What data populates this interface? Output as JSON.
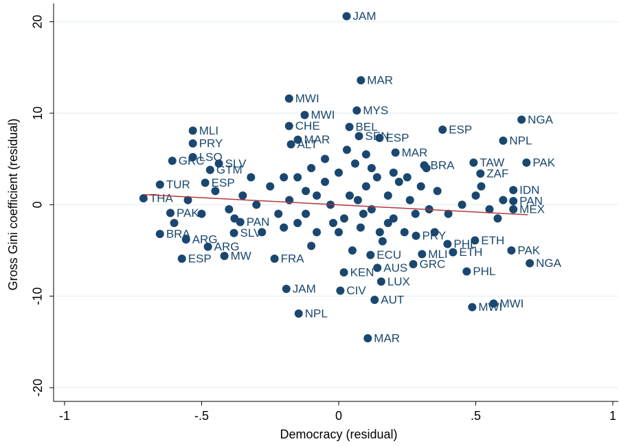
{
  "chart_data": {
    "type": "scatter",
    "x_label": "Democracy (residual)",
    "y_label": "Gross Gini coefficient (residual)",
    "color": "#1a476f",
    "xlim": [
      -1.04,
      1.02
    ],
    "ylim": [
      -21.5,
      22
    ],
    "xticks": [
      -1,
      {
        "value": -0.5,
        "label": "-.5"
      },
      0,
      {
        "value": 0.5,
        "label": ".5"
      },
      1
    ],
    "yticks": [
      -20,
      -10,
      0,
      10,
      20
    ],
    "grid": true,
    "fit_line": {
      "x": [
        -0.71,
        0.69
      ],
      "y": [
        1.1,
        -1.1
      ],
      "color": "#b2373b"
    },
    "x": [
      0.029,
      0.081,
      -0.181,
      -0.124,
      0.066,
      0.667,
      -0.532,
      -0.181,
      0.039,
      0.379,
      -0.532,
      0.6,
      -0.532,
      -0.607,
      0.492,
      0.685,
      -0.652,
      -0.712,
      0.517,
      0.637,
      0.637,
      0.637,
      -0.614,
      -0.652,
      -0.557,
      -0.477,
      -0.572,
      -0.417,
      -0.234,
      0.272,
      0.697,
      0.63,
      0.467,
      0.397,
      0.141,
      0.019,
      0.155,
      0.006,
      -0.191,
      0.131,
      0.487,
      0.565,
      -0.146,
      0.106,
      0.497,
      0.304,
      0.417,
      0.116,
      0.282,
      -0.437,
      -0.469,
      -0.487,
      -0.382,
      -0.359,
      0.074,
      0.149,
      0.207,
      0.312,
      -0.174,
      -0.149,
      -0.25,
      -0.22,
      -0.2,
      -0.18,
      -0.15,
      -0.12,
      -0.1,
      -0.08,
      -0.05,
      -0.03,
      0,
      0.02,
      0.04,
      0.06,
      0.08,
      0.1,
      0.12,
      0.14,
      0.16,
      0.18,
      0.2,
      0.22,
      0.24,
      0.26,
      0.28,
      0.3,
      0.33,
      0.36,
      0.4,
      0.45,
      -0.3,
      -0.35,
      -0.4,
      -0.45,
      -0.5,
      -0.1,
      0.05,
      0.1,
      -0.05,
      0.15,
      -0.2,
      -0.28,
      0,
      0.03,
      0.12,
      -0.15,
      0.2,
      0.25,
      -0.08,
      0.07,
      0.09,
      -0.02,
      0.18,
      -0.12,
      0.5,
      0.55,
      0.6,
      0.52,
      0.58,
      -0.55,
      -0.6,
      0.35,
      0.32,
      -0.32,
      -0.38
    ],
    "y": [
      20.6,
      13.6,
      11.6,
      9.8,
      10.3,
      9.3,
      8.1,
      8.6,
      8.5,
      8.2,
      6.7,
      7.0,
      5.2,
      4.8,
      4.6,
      4.6,
      2.2,
      0.7,
      3.4,
      1.6,
      0.4,
      -0.5,
      -0.9,
      -3.2,
      -3.8,
      -4.6,
      -5.9,
      -5.6,
      -5.9,
      -6.5,
      -6.4,
      -5.0,
      -7.3,
      -4.3,
      -6.9,
      -7.4,
      -8.4,
      -9.4,
      -9.2,
      -10.4,
      -11.2,
      -10.8,
      -11.9,
      -14.6,
      -3.9,
      -5.4,
      -5.2,
      -5.5,
      -3.4,
      4.5,
      3.8,
      2.4,
      -3.1,
      -1.9,
      7.5,
      7.3,
      5.7,
      4.3,
      6.6,
      7.1,
      2,
      -1,
      3,
      0.5,
      -2,
      1.5,
      4,
      -3,
      2.5,
      0,
      3.5,
      -1.5,
      1,
      4.5,
      -2.5,
      2,
      -0.5,
      3,
      -4,
      1,
      -1.5,
      2.5,
      -3,
      0.5,
      -1,
      2,
      -0.5,
      1.5,
      -1,
      0,
      0,
      1,
      -0.5,
      1.5,
      -1,
      -4.5,
      -5,
      5.5,
      5,
      -3,
      -2.5,
      -3,
      -3,
      6,
      4,
      3,
      3.5,
      3,
      1,
      0.5,
      -1,
      -2,
      -2,
      -1,
      1,
      -0.5,
      0.5,
      2,
      -1.5,
      0.5,
      -2,
      -3,
      4,
      3,
      -1.5
    ],
    "labels": [
      "JAM",
      "MAR",
      "MWI",
      "MWI",
      "MYS",
      "NGA",
      "MLI",
      "CHE",
      "BEL",
      "ESP",
      "PRY",
      "NPL",
      "LSO",
      "GRC",
      "TAW",
      "PAK",
      "TUR",
      "THA",
      "ZAF",
      "IDN",
      "PAN",
      "MEX",
      "PAK",
      "BRA",
      "ARG",
      "ARG",
      "ESP",
      "MW",
      "FRA",
      "GRC",
      "NGA",
      "PAK",
      "PHL",
      "PHL",
      "AUS",
      "KEN",
      "LUX",
      "CIV",
      "JAM",
      "AUT",
      "MWI",
      "MWI",
      "NPL",
      "MAR",
      "ETH",
      "MLI",
      "ETH",
      "ECU",
      "PRY",
      "SLV",
      "GTM",
      "ESP",
      "SLV",
      "PAN",
      "SEN",
      "ESP",
      "MAR",
      "BRA",
      "ALT",
      "MAR",
      null,
      null,
      null,
      null,
      null,
      null,
      null,
      null,
      null,
      null,
      null,
      null,
      null,
      null,
      null,
      null,
      null,
      null,
      null,
      null,
      null,
      null,
      null,
      null,
      null,
      null,
      null,
      null,
      null,
      null,
      null,
      null,
      null,
      null,
      null,
      null,
      null,
      null,
      null,
      null,
      null,
      null,
      null,
      null,
      null,
      null,
      null,
      null,
      null,
      null,
      null,
      null,
      null,
      null,
      null,
      null,
      null,
      null,
      null,
      null,
      null,
      null,
      null,
      null,
      null
    ]
  }
}
